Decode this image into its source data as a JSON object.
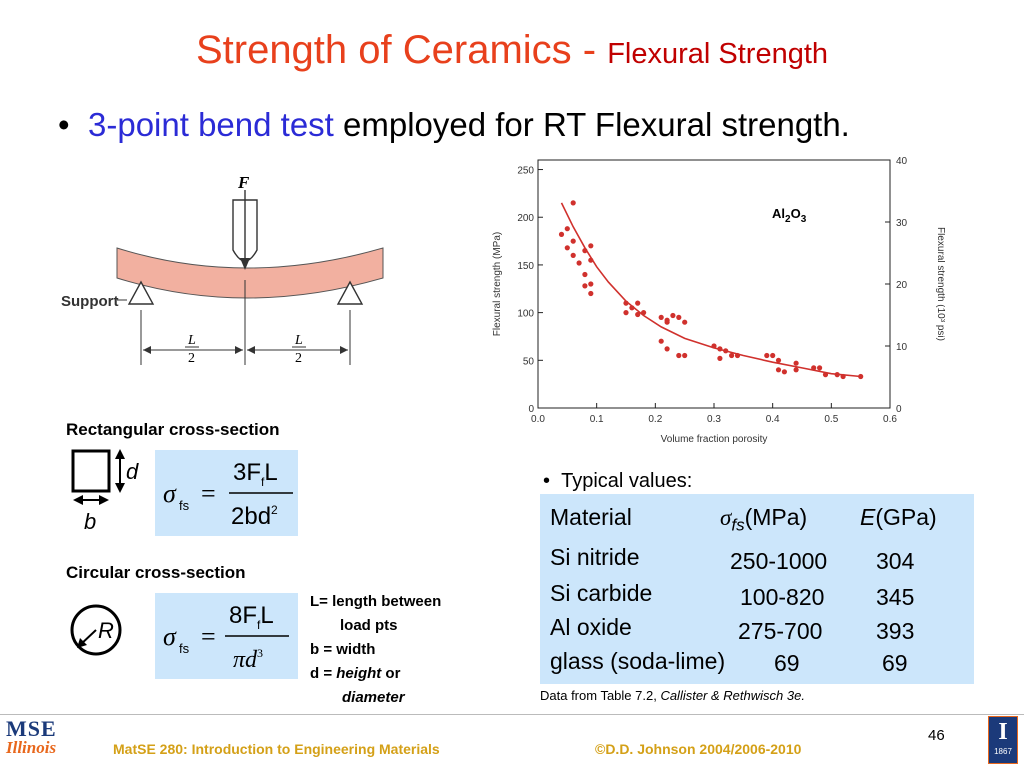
{
  "slide": {
    "title_main": "Strength of Ceramics - ",
    "title_sub": "Flexural Strength",
    "bullet_highlight": "3-point bend test",
    "bullet_rest": " employed for RT Flexural strength.",
    "page_number": "46"
  },
  "figure_bend": {
    "force_label": "F",
    "support_label": "Support",
    "half_span_num": "L",
    "half_span_den": "2"
  },
  "rect": {
    "heading": "Rectangular cross-section",
    "dim_d": "d",
    "dim_b": "b",
    "formula_lhs": "σ",
    "formula_sub": "fs",
    "formula_num": "3F",
    "formula_num_sub": "f",
    "formula_num_tail": "L",
    "formula_den": "2bd",
    "formula_den_sup": "2"
  },
  "circ": {
    "heading": "Circular cross-section",
    "dim_r": "R",
    "formula_lhs": "σ",
    "formula_sub": "fs",
    "formula_num": "8F",
    "formula_num_sub": "f",
    "formula_num_tail": "L",
    "formula_den": "πd",
    "formula_den_sup": "3"
  },
  "legend_notes": {
    "l1": "L= length between",
    "l2": "load pts",
    "l3": "b = width",
    "l4a": "d = ",
    "l4b": "height",
    "l4c": " or",
    "l5": "diameter"
  },
  "table": {
    "bullet": "Typical values:",
    "col_material": "Material",
    "col_sigma_sym": "σ",
    "col_sigma_sub": "fs",
    "col_sigma_unit": "(MPa)",
    "col_e_sym": "E",
    "col_e_unit": "(GPa)",
    "rows": [
      {
        "material": "Si nitride",
        "sigma": "250-1000",
        "e": "304"
      },
      {
        "material": "Si carbide",
        "sigma": "100-820",
        "e": "345"
      },
      {
        "material": "Al oxide",
        "sigma": "275-700",
        "e": "393"
      },
      {
        "material": "glass (soda-lime)",
        "sigma": "69",
        "e": "69"
      }
    ],
    "source_plain": "Data from Table 7.2, ",
    "source_italic": "Callister & Rethwisch 3e."
  },
  "footer": {
    "course": "MatSE 280: Introduction to Engineering Materials",
    "copyright": "©D.D. Johnson 2004/2006-2010",
    "logo_mse": "MSE",
    "logo_illinois": "Illinois",
    "seal_letter": "I",
    "seal_year": "1867"
  },
  "chart_data": {
    "type": "scatter",
    "annotation": "Al2O3",
    "xlabel": "Volume fraction porosity",
    "ylabel": "Flexural strength (MPa)",
    "y2label": "Flexural strength (10³ psi)",
    "xlim": [
      0.0,
      0.6
    ],
    "ylim": [
      0,
      260
    ],
    "y2lim": [
      0,
      40
    ],
    "x_ticks": [
      "0.0",
      "0.1",
      "0.2",
      "0.3",
      "0.4",
      "0.5",
      "0.6"
    ],
    "y_ticks": [
      "0",
      "50",
      "100",
      "150",
      "200",
      "250"
    ],
    "y2_ticks": [
      "0",
      "10",
      "20",
      "30",
      "40"
    ],
    "grid": false,
    "color": "#d0312d",
    "points": [
      [
        0.04,
        182
      ],
      [
        0.05,
        188
      ],
      [
        0.06,
        215
      ],
      [
        0.05,
        168
      ],
      [
        0.06,
        175
      ],
      [
        0.06,
        160
      ],
      [
        0.07,
        152
      ],
      [
        0.08,
        165
      ],
      [
        0.09,
        170
      ],
      [
        0.08,
        140
      ],
      [
        0.08,
        128
      ],
      [
        0.09,
        120
      ],
      [
        0.09,
        130
      ],
      [
        0.09,
        155
      ],
      [
        0.15,
        110
      ],
      [
        0.15,
        100
      ],
      [
        0.16,
        105
      ],
      [
        0.17,
        110
      ],
      [
        0.17,
        98
      ],
      [
        0.18,
        100
      ],
      [
        0.21,
        95
      ],
      [
        0.22,
        90
      ],
      [
        0.22,
        92
      ],
      [
        0.23,
        97
      ],
      [
        0.24,
        95
      ],
      [
        0.25,
        90
      ],
      [
        0.21,
        70
      ],
      [
        0.22,
        62
      ],
      [
        0.24,
        55
      ],
      [
        0.25,
        55
      ],
      [
        0.3,
        65
      ],
      [
        0.31,
        62
      ],
      [
        0.32,
        60
      ],
      [
        0.31,
        52
      ],
      [
        0.33,
        55
      ],
      [
        0.34,
        55
      ],
      [
        0.39,
        55
      ],
      [
        0.4,
        55
      ],
      [
        0.41,
        50
      ],
      [
        0.41,
        40
      ],
      [
        0.42,
        38
      ],
      [
        0.44,
        47
      ],
      [
        0.44,
        40
      ],
      [
        0.47,
        42
      ],
      [
        0.48,
        42
      ],
      [
        0.49,
        35
      ],
      [
        0.51,
        35
      ],
      [
        0.52,
        33
      ],
      [
        0.55,
        33
      ]
    ],
    "fit_curve": [
      [
        0.04,
        215
      ],
      [
        0.06,
        190
      ],
      [
        0.08,
        168
      ],
      [
        0.1,
        148
      ],
      [
        0.12,
        132
      ],
      [
        0.15,
        112
      ],
      [
        0.18,
        97
      ],
      [
        0.21,
        85
      ],
      [
        0.25,
        73
      ],
      [
        0.3,
        63
      ],
      [
        0.35,
        55
      ],
      [
        0.4,
        48
      ],
      [
        0.45,
        42
      ],
      [
        0.5,
        36
      ],
      [
        0.55,
        33
      ]
    ]
  }
}
